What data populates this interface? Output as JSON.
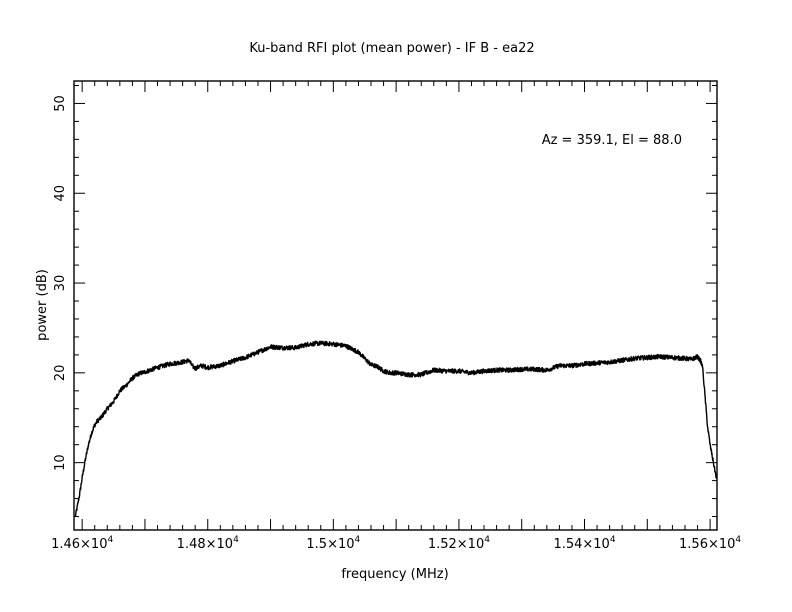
{
  "chart_data": {
    "type": "line",
    "title": "Ku-band RFI plot (mean power) - IF B - ea22",
    "xlabel": "frequency (MHz)",
    "ylabel": "power (dB)",
    "annotation": "Az = 359.1, El = 88.0",
    "xlim": [
      14587,
      15611
    ],
    "ylim": [
      2.5,
      52.5
    ],
    "x_ticks": [
      {
        "value": 14600,
        "mantissa": "1.46×10",
        "exp": "4"
      },
      {
        "value": 14800,
        "mantissa": "1.48×10",
        "exp": "4"
      },
      {
        "value": 15000,
        "mantissa": "1.5×10",
        "exp": "4"
      },
      {
        "value": 15200,
        "mantissa": "1.52×10",
        "exp": "4"
      },
      {
        "value": 15400,
        "mantissa": "1.54×10",
        "exp": "4"
      },
      {
        "value": 15600,
        "mantissa": "1.56×10",
        "exp": "4"
      }
    ],
    "y_ticks": [
      {
        "value": 10,
        "label": "10"
      },
      {
        "value": 20,
        "label": "20"
      },
      {
        "value": 30,
        "label": "30"
      },
      {
        "value": 40,
        "label": "40"
      },
      {
        "value": 50,
        "label": "50"
      }
    ],
    "grid": false,
    "series": [
      {
        "color": "#000000",
        "noise_amplitude_db": 0.5,
        "x": [
          14589,
          14592,
          14596,
          14600,
          14605,
          14610,
          14615,
          14620,
          14625,
          14630,
          14640,
          14650,
          14660,
          14670,
          14680,
          14690,
          14700,
          14720,
          14740,
          14760,
          14770,
          14775,
          14780,
          14790,
          14800,
          14820,
          14840,
          14860,
          14880,
          14900,
          14920,
          14940,
          14960,
          14980,
          15000,
          15020,
          15040,
          15050,
          15060,
          15070,
          15080,
          15090,
          15100,
          15120,
          15140,
          15160,
          15180,
          15200,
          15220,
          15240,
          15260,
          15280,
          15300,
          15320,
          15340,
          15360,
          15380,
          15400,
          15420,
          15440,
          15460,
          15480,
          15500,
          15520,
          15540,
          15560,
          15570,
          15580,
          15585,
          15588,
          15590,
          15593,
          15596,
          15600,
          15604,
          15608,
          15611
        ],
        "y": [
          4.0,
          5.0,
          6.5,
          8.3,
          10.3,
          12.0,
          13.3,
          14.2,
          14.7,
          15.0,
          16.0,
          16.8,
          18.0,
          18.6,
          19.4,
          19.9,
          20.1,
          20.6,
          21.0,
          21.2,
          21.4,
          20.8,
          20.5,
          20.8,
          20.6,
          20.8,
          21.3,
          21.7,
          22.3,
          22.9,
          22.8,
          22.8,
          23.2,
          23.3,
          23.2,
          23.0,
          22.3,
          21.6,
          20.9,
          20.7,
          20.2,
          20.0,
          20.0,
          19.8,
          19.8,
          20.3,
          20.2,
          20.2,
          20.0,
          20.2,
          20.3,
          20.3,
          20.4,
          20.4,
          20.3,
          20.8,
          20.8,
          21.0,
          21.1,
          21.2,
          21.4,
          21.6,
          21.7,
          21.8,
          21.7,
          21.6,
          21.5,
          21.8,
          21.3,
          20.7,
          19.0,
          16.5,
          14.0,
          12.0,
          10.5,
          9.0,
          8.0
        ]
      }
    ]
  }
}
